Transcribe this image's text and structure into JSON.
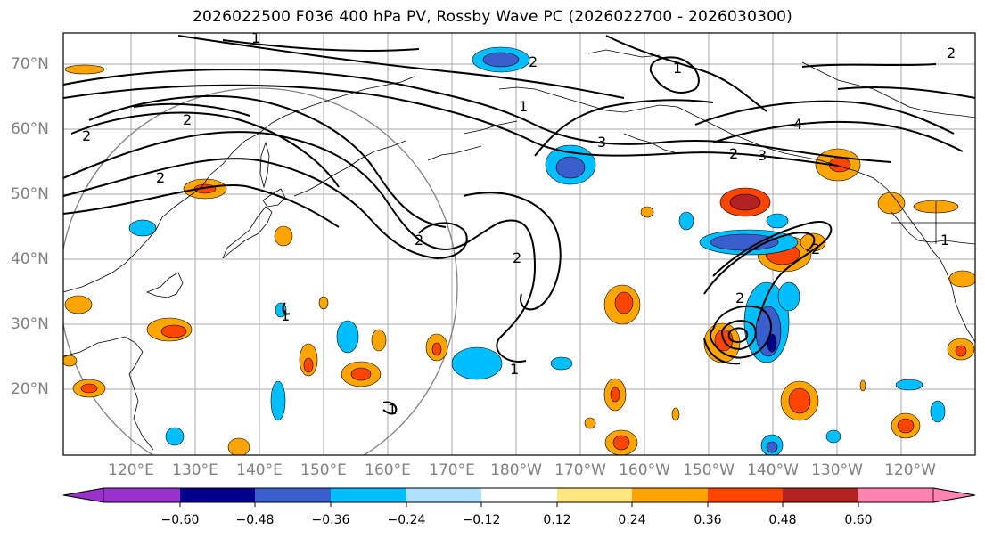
{
  "title": "2026022500 F036 400 hPa PV, Rossby Wave PC (2026022700 - 2026030300)",
  "lat_labels": [
    "70°N",
    "60°N",
    "50°N",
    "40°N",
    "30°N",
    "20°N"
  ],
  "lon_labels": [
    "120°E",
    "130°E",
    "140°E",
    "150°E",
    "160°E",
    "170°E",
    "180°W",
    "170°W",
    "160°W",
    "150°W",
    "140°W",
    "130°W",
    "120°W"
  ],
  "colorbar": {
    "ticks": [
      "−0.60",
      "−0.48",
      "−0.36",
      "−0.24",
      "−0.12",
      "0.12",
      "0.24",
      "0.36",
      "0.48",
      "0.60"
    ],
    "colors": [
      "#9932cc",
      "#00008b",
      "#3a5fcd",
      "#00bfff",
      "#b0e2ff",
      "#ffffff",
      "#ffe680",
      "#ffa500",
      "#ff4500",
      "#b22222",
      "#ff85b0"
    ]
  },
  "contour_labels": [
    "2",
    "2",
    "2",
    "1",
    "2",
    "2",
    "1",
    "2",
    "3",
    "2",
    "4",
    "1",
    "1",
    "2",
    "1",
    "1",
    "2",
    "3",
    "2",
    "1"
  ]
}
